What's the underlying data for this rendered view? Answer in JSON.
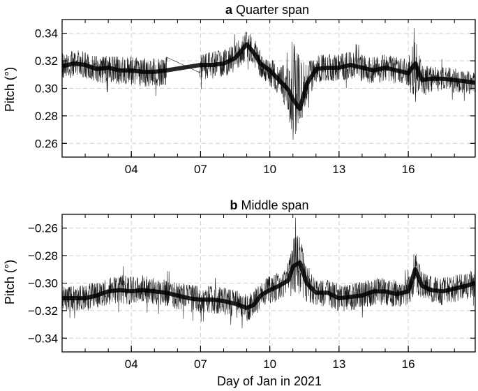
{
  "chart_data": [
    {
      "panel": "a",
      "title_letter": "a",
      "title": "Quarter span",
      "type": "line",
      "ylabel": "Pitch (°)",
      "xlabel": "",
      "xlim": [
        1.0,
        18.9
      ],
      "ylim": [
        0.25,
        0.35
      ],
      "yticks": [
        0.26,
        0.28,
        0.3,
        0.32,
        0.34
      ],
      "ytick_labels": [
        "0.26",
        "0.28",
        "0.30",
        "0.32",
        "0.34"
      ],
      "xticks": [
        4,
        7,
        10,
        13,
        16
      ],
      "xtick_labels": [
        "04",
        "07",
        "10",
        "13",
        "16"
      ],
      "grid": true,
      "series": [
        {
          "color": "#000000",
          "x": [
            1.0,
            1.5,
            2.0,
            2.5,
            3.0,
            3.5,
            4.0,
            4.5,
            5.0,
            5.5,
            7.0,
            7.5,
            8.0,
            8.5,
            9.0,
            9.3,
            9.6,
            10.0,
            10.4,
            10.8,
            11.0,
            11.3,
            11.6,
            12.0,
            12.5,
            13.0,
            13.5,
            14.0,
            14.5,
            15.0,
            15.5,
            16.0,
            16.3,
            16.6,
            17.0,
            17.5,
            18.0,
            18.5,
            18.9
          ],
          "y": [
            0.316,
            0.318,
            0.317,
            0.314,
            0.315,
            0.313,
            0.313,
            0.312,
            0.312,
            0.313,
            0.317,
            0.317,
            0.318,
            0.322,
            0.332,
            0.326,
            0.318,
            0.313,
            0.306,
            0.299,
            0.292,
            0.285,
            0.303,
            0.314,
            0.315,
            0.315,
            0.317,
            0.315,
            0.313,
            0.315,
            0.313,
            0.311,
            0.318,
            0.306,
            0.307,
            0.307,
            0.306,
            0.305,
            0.304
          ],
          "upper": [
            0.326,
            0.328,
            0.327,
            0.324,
            0.324,
            0.323,
            0.324,
            0.322,
            0.322,
            0.323,
            0.327,
            0.327,
            0.328,
            0.333,
            0.342,
            0.337,
            0.327,
            0.323,
            0.318,
            0.316,
            0.34,
            0.322,
            0.318,
            0.324,
            0.325,
            0.325,
            0.327,
            0.325,
            0.323,
            0.325,
            0.323,
            0.322,
            0.336,
            0.317,
            0.316,
            0.316,
            0.315,
            0.314,
            0.313
          ],
          "lower": [
            0.306,
            0.308,
            0.307,
            0.303,
            0.304,
            0.302,
            0.302,
            0.301,
            0.301,
            0.302,
            0.306,
            0.307,
            0.308,
            0.312,
            0.321,
            0.316,
            0.308,
            0.302,
            0.294,
            0.283,
            0.262,
            0.27,
            0.29,
            0.304,
            0.305,
            0.305,
            0.307,
            0.305,
            0.303,
            0.305,
            0.303,
            0.3,
            0.29,
            0.294,
            0.297,
            0.298,
            0.297,
            0.296,
            0.295
          ]
        }
      ]
    },
    {
      "panel": "b",
      "title_letter": "b",
      "title": "Middle span",
      "type": "line",
      "ylabel": "Pitch (°)",
      "xlabel": "Day of Jan in 2021",
      "xlim": [
        1.0,
        18.9
      ],
      "ylim": [
        -0.35,
        -0.25
      ],
      "yticks": [
        -0.34,
        -0.32,
        -0.3,
        -0.28,
        -0.26
      ],
      "ytick_labels": [
        "−0.34",
        "−0.32",
        "−0.30",
        "−0.28",
        "−0.26"
      ],
      "xticks": [
        4,
        7,
        10,
        13,
        16
      ],
      "xtick_labels": [
        "04",
        "07",
        "10",
        "13",
        "16"
      ],
      "grid": true,
      "series": [
        {
          "color": "#000000",
          "x": [
            1.0,
            1.5,
            2.0,
            2.5,
            3.0,
            3.5,
            4.0,
            4.5,
            5.0,
            5.5,
            6.0,
            6.5,
            7.0,
            7.5,
            8.0,
            8.5,
            9.0,
            9.3,
            9.6,
            10.0,
            10.4,
            10.8,
            11.0,
            11.3,
            11.6,
            12.0,
            12.5,
            13.0,
            13.5,
            14.0,
            14.5,
            15.0,
            15.5,
            16.0,
            16.3,
            16.6,
            17.0,
            17.5,
            18.0,
            18.5,
            18.9
          ],
          "y": [
            -0.311,
            -0.311,
            -0.311,
            -0.309,
            -0.306,
            -0.305,
            -0.306,
            -0.305,
            -0.306,
            -0.307,
            -0.309,
            -0.311,
            -0.312,
            -0.312,
            -0.313,
            -0.315,
            -0.318,
            -0.316,
            -0.309,
            -0.305,
            -0.302,
            -0.298,
            -0.288,
            -0.285,
            -0.3,
            -0.307,
            -0.307,
            -0.311,
            -0.31,
            -0.309,
            -0.306,
            -0.306,
            -0.308,
            -0.306,
            -0.29,
            -0.302,
            -0.305,
            -0.306,
            -0.304,
            -0.302,
            -0.3
          ],
          "upper": [
            -0.302,
            -0.302,
            -0.301,
            -0.299,
            -0.296,
            -0.294,
            -0.295,
            -0.294,
            -0.296,
            -0.297,
            -0.299,
            -0.301,
            -0.302,
            -0.302,
            -0.303,
            -0.305,
            -0.308,
            -0.305,
            -0.3,
            -0.294,
            -0.291,
            -0.284,
            -0.266,
            -0.264,
            -0.286,
            -0.297,
            -0.297,
            -0.301,
            -0.3,
            -0.299,
            -0.296,
            -0.296,
            -0.298,
            -0.296,
            -0.272,
            -0.292,
            -0.295,
            -0.296,
            -0.294,
            -0.292,
            -0.29
          ],
          "lower": [
            -0.32,
            -0.32,
            -0.321,
            -0.319,
            -0.316,
            -0.315,
            -0.316,
            -0.315,
            -0.316,
            -0.317,
            -0.319,
            -0.321,
            -0.322,
            -0.322,
            -0.323,
            -0.325,
            -0.328,
            -0.326,
            -0.319,
            -0.315,
            -0.313,
            -0.313,
            -0.311,
            -0.308,
            -0.314,
            -0.317,
            -0.317,
            -0.321,
            -0.32,
            -0.319,
            -0.316,
            -0.316,
            -0.318,
            -0.316,
            -0.308,
            -0.312,
            -0.315,
            -0.316,
            -0.314,
            -0.312,
            -0.31
          ]
        }
      ]
    }
  ]
}
